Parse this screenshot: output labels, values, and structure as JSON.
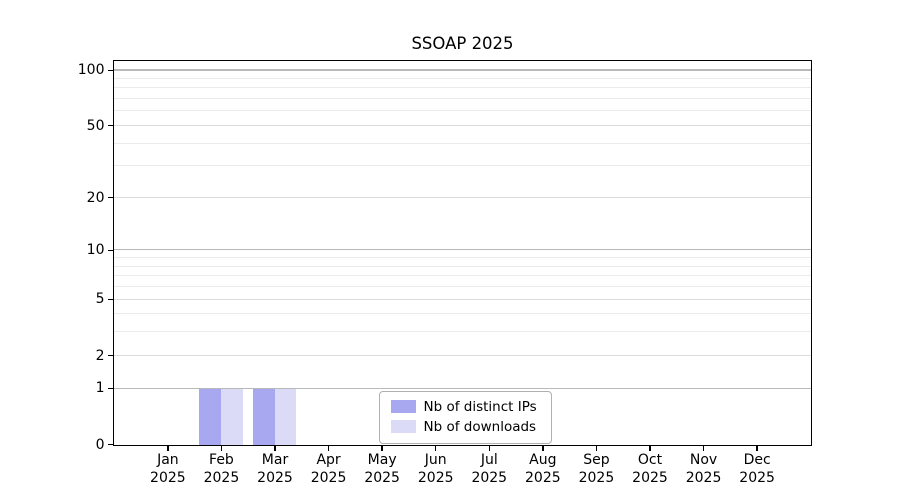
{
  "chart_data": {
    "type": "bar",
    "title": "SSOAP 2025",
    "year_label": "2025",
    "categories": [
      "Jan",
      "Feb",
      "Mar",
      "Apr",
      "May",
      "Jun",
      "Jul",
      "Aug",
      "Sep",
      "Oct",
      "Nov",
      "Dec"
    ],
    "series": [
      {
        "name": "Nb of distinct IPs",
        "color": "#a8a8f0",
        "values": [
          0,
          1,
          1,
          0,
          0,
          0,
          0,
          0,
          0,
          0,
          0,
          0
        ]
      },
      {
        "name": "Nb of downloads",
        "color": "#dbdbf8",
        "values": [
          0,
          1,
          1,
          0,
          0,
          0,
          0,
          0,
          0,
          0,
          0,
          0
        ]
      }
    ],
    "xlabel": "",
    "ylabel": "",
    "yscale": "log1p",
    "ylim": [
      0,
      100
    ],
    "yticks": [
      0,
      1,
      2,
      5,
      10,
      20,
      50,
      100
    ],
    "gridlines": {
      "major": [
        1,
        10,
        100
      ],
      "mid": [
        2,
        5,
        20,
        50
      ],
      "minor": [
        3,
        4,
        6,
        7,
        8,
        9,
        30,
        40,
        60,
        70,
        80,
        90
      ]
    },
    "grid": "horizontal",
    "legend_position": "bottom-center"
  },
  "colors": {
    "bar_distinct_ips": "#a8a8f0",
    "bar_downloads": "#dbdbf8",
    "grid_major": "#b9b9b9",
    "grid_mid": "#dcdcdc",
    "grid_minor": "#ebebeb",
    "axis": "#000000",
    "text": "#000000",
    "legend_border": "#b0b0b0",
    "background": "#ffffff"
  }
}
